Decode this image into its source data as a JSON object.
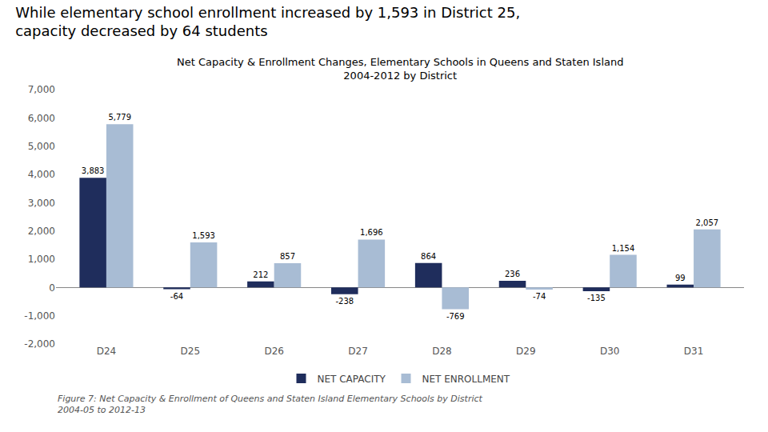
{
  "chart_data": {
    "type": "bar",
    "title": "While elementary school enrollment increased by 1,593 in District 25,\ncapacity decreased by 64 students",
    "subtitle": "Net Capacity & Enrollment Changes, Elementary Schools in Queens and Staten Island\n2004-2012 by District",
    "annotations": [
      "Figure 7: Net Capacity & Enrollment of Queens and Staten Island Elementary Schools by District\n2004-05 to 2012-13"
    ],
    "categories": [
      "D24",
      "D25",
      "D26",
      "D27",
      "D28",
      "D29",
      "D30",
      "D31"
    ],
    "series": [
      {
        "name": "NET CAPACITY",
        "color": "#1f2d5c",
        "values": [
          3883,
          -64,
          212,
          -238,
          864,
          236,
          -135,
          99
        ],
        "value_labels": [
          "3,883",
          "-64",
          "212",
          "-238",
          "864",
          "236",
          "-135",
          "99"
        ]
      },
      {
        "name": "NET ENROLLMENT",
        "color": "#a8bcd4",
        "values": [
          5779,
          1593,
          857,
          1696,
          -769,
          -74,
          1154,
          2057
        ],
        "value_labels": [
          "5,779",
          "1,593",
          "857",
          "1,696",
          "-769",
          "-74",
          "1,154",
          "2,057"
        ]
      }
    ],
    "ylim": [
      -2000,
      7000
    ],
    "yticks": [
      {
        "value": -2000,
        "label": "-2,000"
      },
      {
        "value": -1000,
        "label": "-1,000"
      },
      0,
      {
        "value": 1000,
        "label": "1,000"
      },
      {
        "value": 2000,
        "label": "2,000"
      },
      {
        "value": 3000,
        "label": "3,000"
      },
      {
        "value": 4000,
        "label": "4,000"
      },
      {
        "value": 5000,
        "label": "5,000"
      },
      {
        "value": 6000,
        "label": "6,000"
      },
      {
        "value": 7000,
        "label": "7,000"
      }
    ],
    "grid": false,
    "legend": "bottom",
    "data_labels": true
  }
}
